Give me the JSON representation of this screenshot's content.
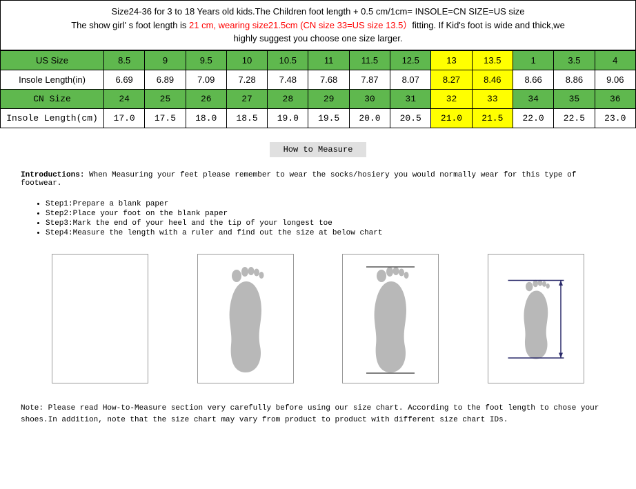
{
  "header": {
    "line1": "Size24-36 for 3 to 18 Years old kids.The Children foot length + 0.5 cm/1cm= INSOLE=CN SIZE=US size",
    "line2_pre": "The show girl' s foot length is ",
    "line2_red": "21 cm, wearing size21.5cm (CN size 33=US size 13.5）",
    "line2_post": "fitting. If Kid's foot is wide and thick,we",
    "line3": "highly suggest  you choose one size larger."
  },
  "table": {
    "labels": {
      "us_size": "US Size",
      "insole_in": "Insole Length(in)",
      "cn_size": "CN Size",
      "insole_cm": "Insole Length(cm)"
    },
    "columns": [
      {
        "us": "8.5",
        "in": "6.69",
        "cn": "24",
        "cm": "17.0",
        "hl": false
      },
      {
        "us": "9",
        "in": "6.89",
        "cn": "25",
        "cm": "17.5",
        "hl": false
      },
      {
        "us": "9.5",
        "in": "7.09",
        "cn": "26",
        "cm": "18.0",
        "hl": false
      },
      {
        "us": "10",
        "in": "7.28",
        "cn": "27",
        "cm": "18.5",
        "hl": false
      },
      {
        "us": "10.5",
        "in": "7.48",
        "cn": "28",
        "cm": "19.0",
        "hl": false
      },
      {
        "us": "11",
        "in": "7.68",
        "cn": "29",
        "cm": "19.5",
        "hl": false
      },
      {
        "us": "11.5",
        "in": "7.87",
        "cn": "30",
        "cm": "20.0",
        "hl": false
      },
      {
        "us": "12.5",
        "in": "8.07",
        "cn": "31",
        "cm": "20.5",
        "hl": false
      },
      {
        "us": "13",
        "in": "8.27",
        "cn": "32",
        "cm": "21.0",
        "hl": true
      },
      {
        "us": "13.5",
        "in": "8.46",
        "cn": "33",
        "cm": "21.5",
        "hl": true
      },
      {
        "us": "1",
        "in": "8.66",
        "cn": "34",
        "cm": "22.0",
        "hl": false
      },
      {
        "us": "3.5",
        "in": "8.86",
        "cn": "35",
        "cm": "22.5",
        "hl": false
      },
      {
        "us": "4",
        "in": "9.06",
        "cn": "36",
        "cm": "23.0",
        "hl": false
      }
    ],
    "colors": {
      "header_row_bg": "#5fb84e",
      "highlight_bg": "#ffff00",
      "border_color": "#000000"
    }
  },
  "measure": {
    "title": "How to Measure",
    "intro_label": "Introductions:",
    "intro_text": " When Measuring your feet please remember to wear the socks/hosiery you would normally wear for this type of footwear.",
    "steps": [
      "Step1:Prepare a blank paper",
      "Step2:Place your foot on the blank paper",
      "Step3:Mark the end of your heel and the tip of your longest toe",
      "Step4:Measure the length with a ruler and find out the size at below chart"
    ],
    "note": "Note: Please read How-to-Measure section very carefully before using our size chart. According to the foot length to chose your shoes.In addition, note that the size chart may vary from product to product with different size chart IDs.",
    "foot_color": "#b8b8b8",
    "arrow_color": "#2a2a6a"
  }
}
